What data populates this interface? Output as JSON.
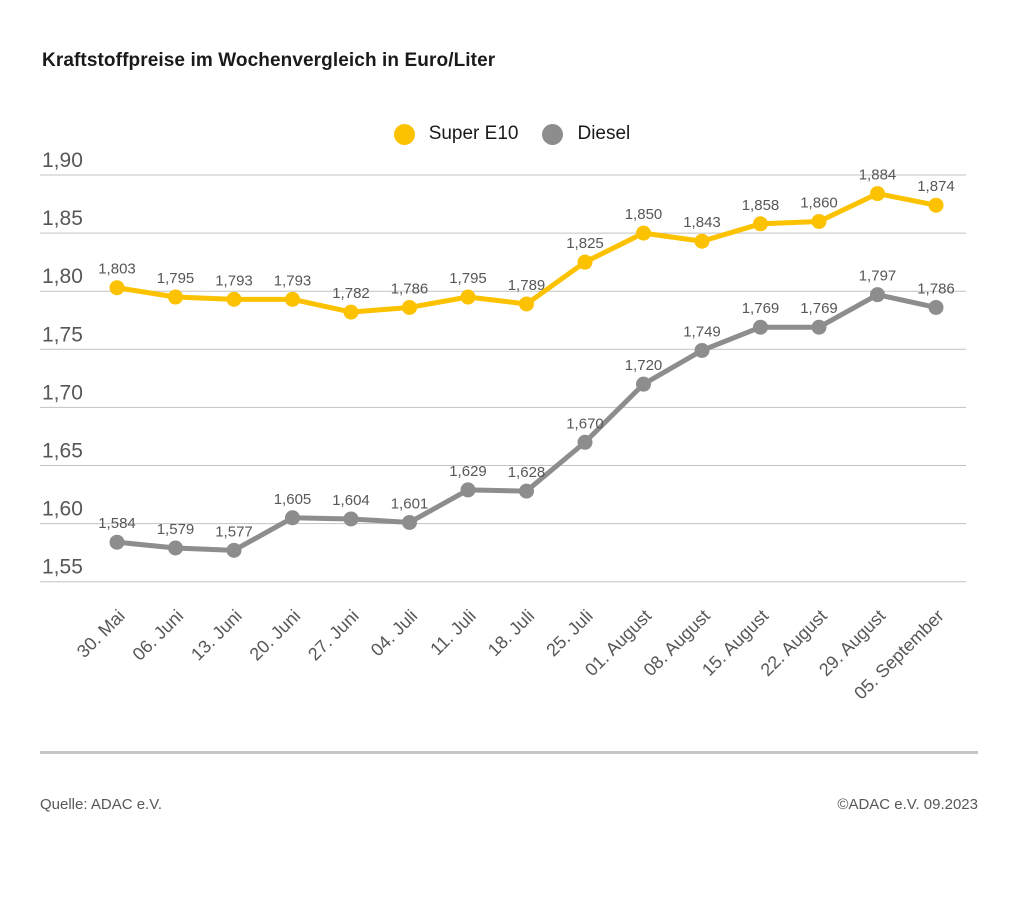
{
  "page": {
    "title": "Kraftstoffpreise im Wochenvergleich in Euro/Liter"
  },
  "legend": {
    "items": [
      {
        "label": "Super E10",
        "color": "#FCC200",
        "icon": "yellow-dot"
      },
      {
        "label": "Diesel",
        "color": "#8D8D8D",
        "icon": "gray-dot"
      }
    ]
  },
  "chart_data": {
    "type": "line",
    "title": "Kraftstoffpreise im Wochenvergleich in Euro/Liter",
    "ylabel": "Euro/Liter",
    "xlabel": "",
    "categories": [
      "30. Mai",
      "06. Juni",
      "13. Juni",
      "20. Juni",
      "27. Juni",
      "04. Juli",
      "11. Juli",
      "18. Juli",
      "25. Juli",
      "01. August",
      "08. August",
      "15. August",
      "22. August",
      "29. August",
      "05. September"
    ],
    "series": [
      {
        "name": "Super E10",
        "color": "#FCC200",
        "values": [
          1.803,
          1.795,
          1.793,
          1.793,
          1.782,
          1.786,
          1.795,
          1.789,
          1.825,
          1.85,
          1.843,
          1.858,
          1.86,
          1.884,
          1.874
        ],
        "labels": [
          "1,803",
          "1,795",
          "1,793",
          "1,793",
          "1,782",
          "1,786",
          "1,795",
          "1,789",
          "1,825",
          "1,850",
          "1,843",
          "1,858",
          "1,860",
          "1,884",
          "1,874"
        ]
      },
      {
        "name": "Diesel",
        "color": "#8D8D8D",
        "values": [
          1.584,
          1.579,
          1.577,
          1.605,
          1.604,
          1.601,
          1.629,
          1.628,
          1.67,
          1.72,
          1.749,
          1.769,
          1.769,
          1.797,
          1.786
        ],
        "labels": [
          "1,584",
          "1,579",
          "1,577",
          "1,605",
          "1,604",
          "1,601",
          "1,629",
          "1,628",
          "1,670",
          "1,720",
          "1,749",
          "1,769",
          "1,769",
          "1,797",
          "1,786"
        ]
      }
    ],
    "ylim": [
      1.55,
      1.9
    ],
    "ytick_interval": 0.05,
    "yticks": [
      "1,90",
      "1,85",
      "1,80",
      "1,75",
      "1,70",
      "1,65",
      "1,60",
      "1,55"
    ],
    "grid": "horizontal",
    "legend_position": "top-center",
    "value_format": "comma-decimal"
  },
  "footer": {
    "source": "Quelle: ADAC e.V.",
    "copyright": "©ADAC e.V. 09.2023"
  },
  "colors": {
    "background": "#FFFFFF",
    "title_text": "#1A1A1A",
    "axis_text": "#575756",
    "data_label_text": "#575756",
    "grid_line": "#C3C3C3",
    "divider": "#C6C6C6",
    "super_e10": "#FCC200",
    "diesel": "#8D8D8D"
  }
}
